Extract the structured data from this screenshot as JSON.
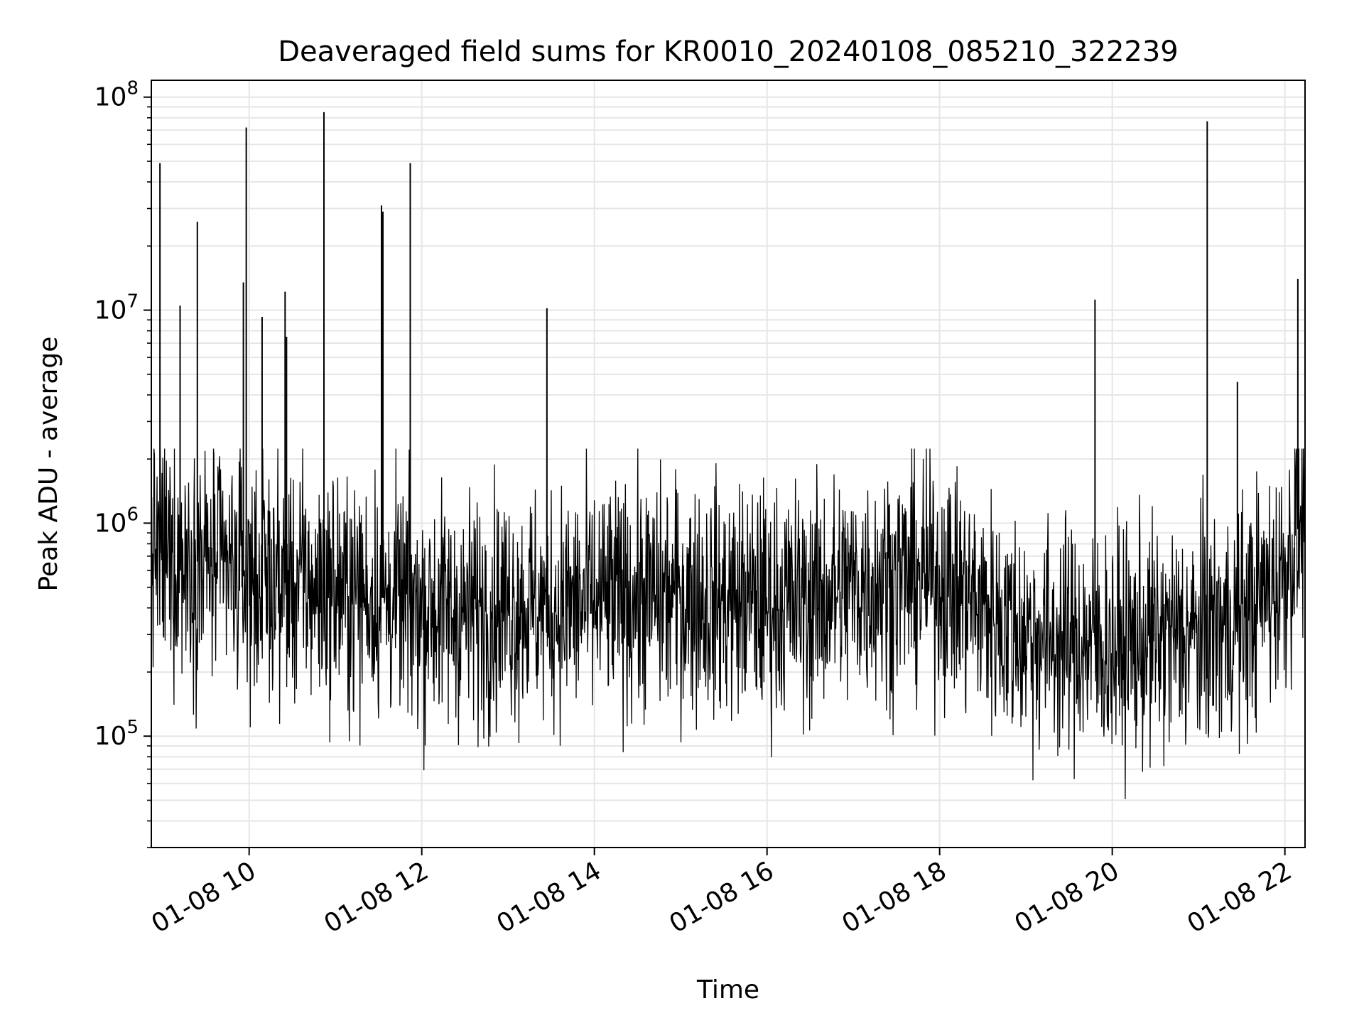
{
  "chart_data": {
    "type": "line",
    "title": "Deaveraged field sums for KR0010_20240108_085210_322239",
    "xlabel": "Time",
    "ylabel": "Peak ADU - average",
    "yscale": "log",
    "ylim": [
      30000,
      120000000
    ],
    "xlim": [
      "2024-01-08 08:52",
      "2024-01-08 22:14"
    ],
    "x_tick_labels": [
      "01-08 10",
      "01-08 12",
      "01-08 14",
      "01-08 16",
      "01-08 18",
      "01-08 20",
      "01-08 22"
    ],
    "y_tick_labels": [
      {
        "base": "10",
        "exp": "5"
      },
      {
        "base": "10",
        "exp": "6"
      },
      {
        "base": "10",
        "exp": "7"
      },
      {
        "base": "10",
        "exp": "8"
      }
    ],
    "grid": true,
    "line_color": "#000000",
    "grid_color": "#e6e6e6",
    "series": [
      {
        "values_envelope": [
          {
            "x": "2024-01-08 08:52",
            "y": 800000
          },
          {
            "x": "2024-01-08 09:00",
            "y": 700000
          },
          {
            "x": "2024-01-08 09:30",
            "y": 650000
          },
          {
            "x": "2024-01-08 10:00",
            "y": 550000
          },
          {
            "x": "2024-01-08 10:30",
            "y": 520000
          },
          {
            "x": "2024-01-08 11:00",
            "y": 480000
          },
          {
            "x": "2024-01-08 11:30",
            "y": 450000
          },
          {
            "x": "2024-01-08 12:00",
            "y": 400000
          },
          {
            "x": "2024-01-08 12:30",
            "y": 380000
          },
          {
            "x": "2024-01-08 13:00",
            "y": 420000
          },
          {
            "x": "2024-01-08 13:30",
            "y": 400000
          },
          {
            "x": "2024-01-08 14:00",
            "y": 420000
          },
          {
            "x": "2024-01-08 14:30",
            "y": 450000
          },
          {
            "x": "2024-01-08 15:00",
            "y": 450000
          },
          {
            "x": "2024-01-08 15:30",
            "y": 430000
          },
          {
            "x": "2024-01-08 16:00",
            "y": 420000
          },
          {
            "x": "2024-01-08 16:30",
            "y": 430000
          },
          {
            "x": "2024-01-08 17:00",
            "y": 500000
          },
          {
            "x": "2024-01-08 17:30",
            "y": 560000
          },
          {
            "x": "2024-01-08 18:00",
            "y": 550000
          },
          {
            "x": "2024-01-08 18:30",
            "y": 400000
          },
          {
            "x": "2024-01-08 19:00",
            "y": 300000
          },
          {
            "x": "2024-01-08 19:30",
            "y": 280000
          },
          {
            "x": "2024-01-08 20:00",
            "y": 260000
          },
          {
            "x": "2024-01-08 20:30",
            "y": 280000
          },
          {
            "x": "2024-01-08 21:00",
            "y": 300000
          },
          {
            "x": "2024-01-08 21:30",
            "y": 350000
          },
          {
            "x": "2024-01-08 22:00",
            "y": 600000
          },
          {
            "x": "2024-01-08 22:14",
            "y": 1200000
          }
        ],
        "spikes": [
          {
            "x": "2024-01-08 08:58",
            "y": 49000000
          },
          {
            "x": "2024-01-08 09:12",
            "y": 10500000
          },
          {
            "x": "2024-01-08 09:24",
            "y": 26000000
          },
          {
            "x": "2024-01-08 09:56",
            "y": 13500000
          },
          {
            "x": "2024-01-08 09:58",
            "y": 72000000
          },
          {
            "x": "2024-01-08 10:09",
            "y": 9300000
          },
          {
            "x": "2024-01-08 10:25",
            "y": 12200000
          },
          {
            "x": "2024-01-08 10:26",
            "y": 7500000
          },
          {
            "x": "2024-01-08 10:52",
            "y": 85000000
          },
          {
            "x": "2024-01-08 11:32",
            "y": 31000000
          },
          {
            "x": "2024-01-08 11:33",
            "y": 29000000
          },
          {
            "x": "2024-01-08 11:52",
            "y": 49000000
          },
          {
            "x": "2024-01-08 13:27",
            "y": 10200000
          },
          {
            "x": "2024-01-08 19:48",
            "y": 11200000
          },
          {
            "x": "2024-01-08 21:06",
            "y": 77000000
          },
          {
            "x": "2024-01-08 21:27",
            "y": 4600000
          },
          {
            "x": "2024-01-08 22:09",
            "y": 14000000
          }
        ]
      }
    ]
  }
}
